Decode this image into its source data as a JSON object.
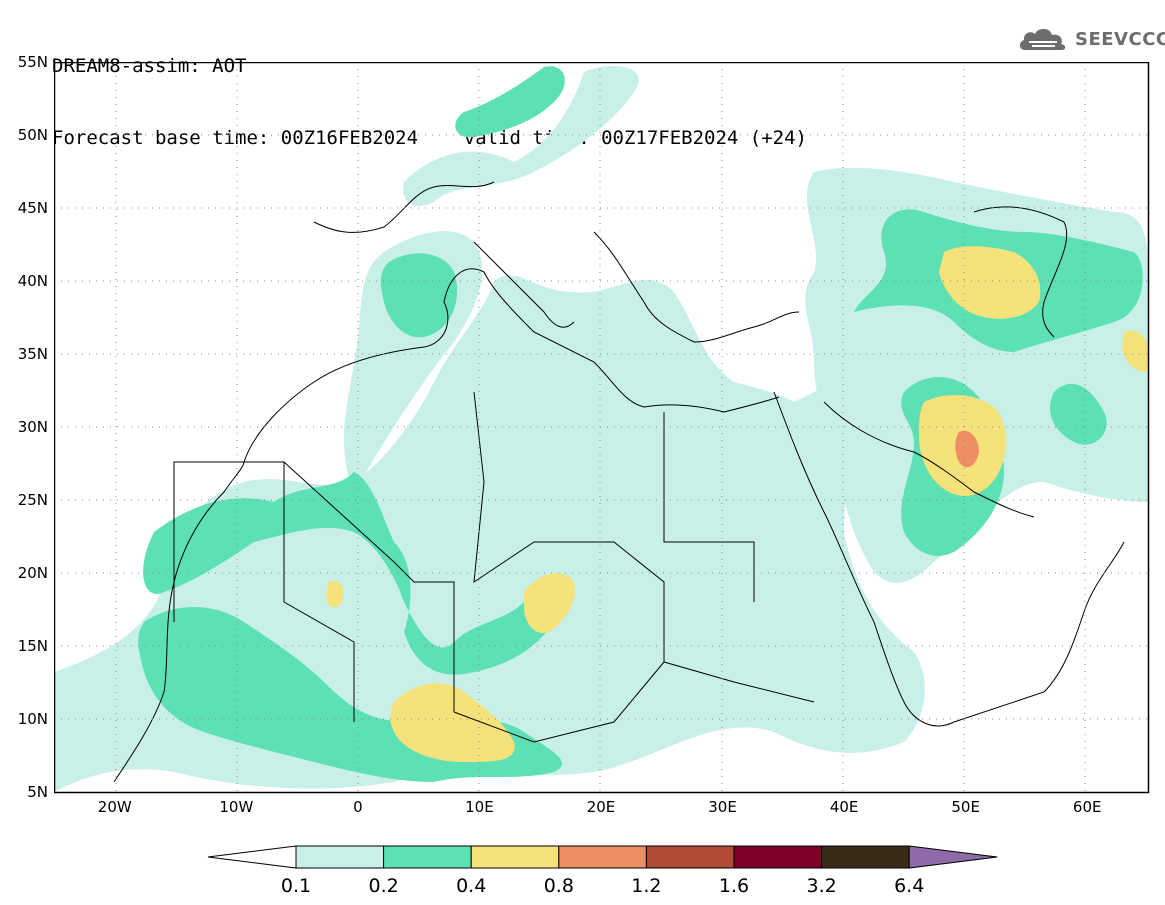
{
  "title": {
    "line1": "DREAM8-assim: AOT",
    "line2": "Forecast base time: 00Z16FEB2024    valid time: 00Z17FEB2024 (+24)"
  },
  "logo": {
    "text": "SEEVCCC",
    "icon": "cloud-icon",
    "color": "#6d6d6d"
  },
  "map": {
    "projection": "lat-lon",
    "lon_range": [
      -25,
      65
    ],
    "lat_range": [
      5,
      55
    ],
    "lat_labels": [
      "55N",
      "50N",
      "45N",
      "40N",
      "35N",
      "30N",
      "25N",
      "20N",
      "15N",
      "10N",
      "5N"
    ],
    "lon_labels": [
      "20W",
      "10W",
      "0",
      "10E",
      "20E",
      "30E",
      "40E",
      "50E",
      "60E"
    ],
    "grid": "dotted"
  },
  "colorbar": {
    "levels": [
      "0.1",
      "0.2",
      "0.4",
      "0.8",
      "1.2",
      "1.6",
      "3.2",
      "6.4"
    ],
    "colors": [
      "#ffffff",
      "#c8f0e8",
      "#5ce0b4",
      "#f5e27a",
      "#ee8f63",
      "#b04a34",
      "#7d0026",
      "#3a2a18",
      "#8e6aa8"
    ]
  }
}
